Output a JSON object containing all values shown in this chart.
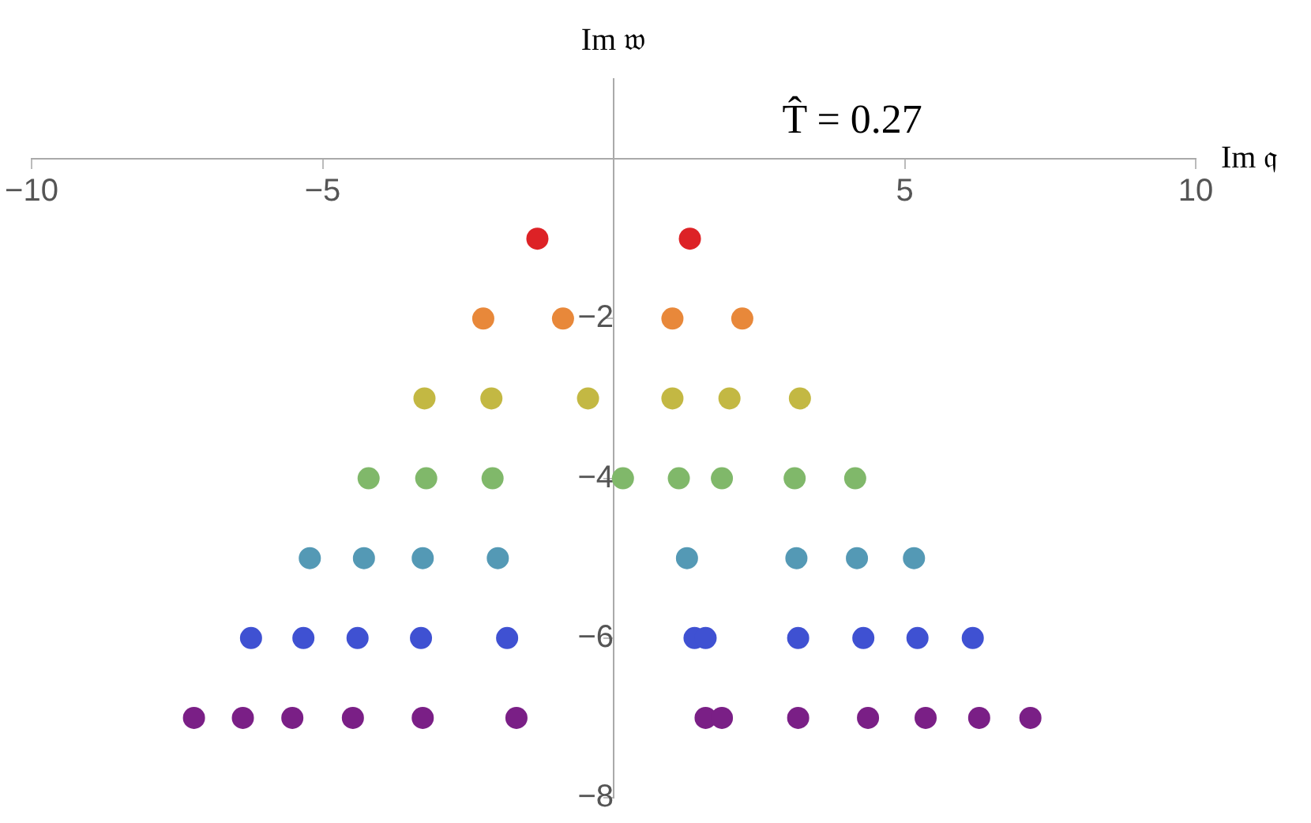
{
  "chart_data": {
    "type": "scatter",
    "xlabel": "Im 𝔮",
    "ylabel": "Im 𝔴",
    "annotations": [
      "T̂ = 0.27"
    ],
    "xlim": [
      -10,
      10
    ],
    "xticks": [
      -10,
      -5,
      5,
      10
    ],
    "ylim": [
      -8,
      1
    ],
    "yticks": [
      -8,
      -6,
      -4,
      -2
    ],
    "grid": false,
    "legend": false,
    "marker": "circle",
    "series": [
      {
        "color": "#dd2226",
        "x": [
          -1.31,
          1.31
        ],
        "values": [
          -1,
          -1
        ]
      },
      {
        "color": "#e8883a",
        "x": [
          -2.24,
          -0.87,
          1.01,
          2.21
        ],
        "values": [
          -2,
          -2,
          -2,
          -2
        ]
      },
      {
        "color": "#c3b843",
        "x": [
          -3.25,
          -2.1,
          -0.44,
          1.01,
          1.99,
          3.2
        ],
        "values": [
          -3,
          -3,
          -3,
          -3,
          -3,
          -3
        ]
      },
      {
        "color": "#80b86a",
        "x": [
          -4.21,
          -3.22,
          -2.08,
          0.16,
          1.12,
          1.86,
          3.11,
          4.15
        ],
        "values": [
          -4,
          -4,
          -4,
          -4,
          -4,
          -4,
          -4,
          -4
        ]
      },
      {
        "color": "#5499b5",
        "x": [
          -5.22,
          -4.29,
          -3.28,
          -1.99,
          1.26,
          3.14,
          4.18,
          5.16
        ],
        "values": [
          -5,
          -5,
          -5,
          -5,
          -5,
          -5,
          -5,
          -5
        ]
      },
      {
        "color": "#3f51d2",
        "x": [
          -6.23,
          -5.33,
          -4.4,
          -3.31,
          -1.83,
          1.39,
          1.58,
          3.17,
          4.29,
          5.22,
          6.17
        ],
        "values": [
          -6,
          -6,
          -6,
          -6,
          -6,
          -6,
          -6,
          -6,
          -6,
          -6,
          -6
        ]
      },
      {
        "color": "#7a1f86",
        "x": [
          -7.21,
          -6.37,
          -5.52,
          -4.48,
          -3.28,
          -1.67,
          1.58,
          1.86,
          3.17,
          4.37,
          5.36,
          6.28,
          7.16
        ],
        "values": [
          -7,
          -7,
          -7,
          -7,
          -7,
          -7,
          -7,
          -7,
          -7,
          -7,
          -7,
          -7,
          -7
        ]
      }
    ]
  }
}
